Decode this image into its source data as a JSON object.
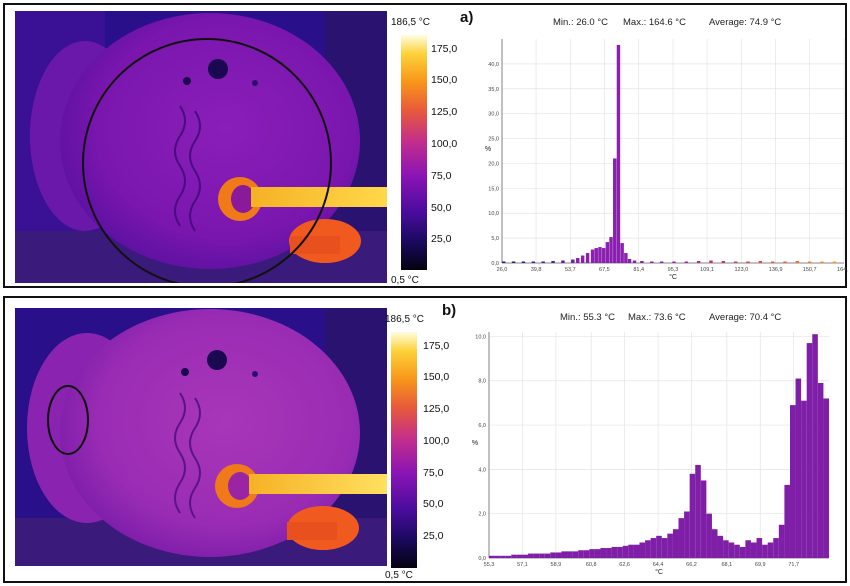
{
  "colorbar": {
    "max_label": "186,5 °C",
    "min_label": "0,5 °C",
    "ticks": [
      "175,0",
      "150,0",
      "125,0",
      "100,0",
      "75,0",
      "50,0",
      "25,0"
    ],
    "tick_values": [
      175,
      150,
      125,
      100,
      75,
      50,
      25
    ],
    "range": [
      0.5,
      186.5
    ]
  },
  "panels": [
    {
      "letter": "a)",
      "stats": {
        "min": "Min.: 26.0 °C",
        "max": "Max.: 164.6 °C",
        "avg": "Average: 74.9 °C"
      },
      "roi": "large-circle"
    },
    {
      "letter": "b)",
      "stats": {
        "min": "Min.: 55.3 °C",
        "max": "Max.: 73.6 °C",
        "avg": "Average: 70.4 °C"
      },
      "roi": "small-ellipse"
    }
  ],
  "chart_data": [
    {
      "type": "bar",
      "xlabel": "°C",
      "ylabel": "%",
      "xlim": [
        26.0,
        164.6
      ],
      "ylim": [
        0,
        45
      ],
      "x_ticks": [
        "26,0",
        "39,8",
        "53,7",
        "67,5",
        "81,4",
        "95,3",
        "109,1",
        "123,0",
        "136,9",
        "150,7",
        "164,6"
      ],
      "x_tick_values": [
        26.0,
        39.8,
        53.7,
        67.5,
        81.4,
        95.3,
        109.1,
        123.0,
        136.9,
        150.7,
        164.6
      ],
      "y_ticks": [
        "0,0",
        "5,0",
        "10,0",
        "15,0",
        "20,0",
        "25,0",
        "30,0",
        "35,0",
        "40,0"
      ],
      "y_tick_values": [
        0,
        5,
        10,
        15,
        20,
        25,
        30,
        35,
        40
      ],
      "bin_width": 1.39,
      "bins_x": [
        26.0,
        30.0,
        34.0,
        38.0,
        42.0,
        46.0,
        50.0,
        54.0,
        56.0,
        58.0,
        60.0,
        62.0,
        63.5,
        65.0,
        66.5,
        68.0,
        69.5,
        71.0,
        72.5,
        74.0,
        75.5,
        77.0,
        79.0,
        82.0,
        86.0,
        90.0,
        95.0,
        100.0,
        105.0,
        110.0,
        115.0,
        120.0,
        125.0,
        130.0,
        135.0,
        140.0,
        145.0,
        150.0,
        155.0,
        160.0
      ],
      "bins_y": [
        0.3,
        0.3,
        0.3,
        0.3,
        0.3,
        0.4,
        0.5,
        0.7,
        1.0,
        1.5,
        2.0,
        2.7,
        3.0,
        3.2,
        3.0,
        4.2,
        5.2,
        21.0,
        43.8,
        4.0,
        2.0,
        0.8,
        0.5,
        0.4,
        0.3,
        0.3,
        0.3,
        0.3,
        0.4,
        0.5,
        0.4,
        0.3,
        0.3,
        0.4,
        0.3,
        0.3,
        0.4,
        0.3,
        0.3,
        0.3
      ]
    },
    {
      "type": "bar",
      "xlabel": "°C",
      "ylabel": "%",
      "xlim": [
        55.3,
        73.6
      ],
      "ylim": [
        0,
        10.2
      ],
      "x_ticks": [
        "55,3",
        "57,1",
        "58,9",
        "60,8",
        "62,6",
        "64,4",
        "66,2",
        "68,1",
        "69,9",
        "71,7"
      ],
      "x_tick_values": [
        55.3,
        57.1,
        58.9,
        60.8,
        62.6,
        64.4,
        66.2,
        68.1,
        69.9,
        71.7
      ],
      "y_ticks": [
        "0,0",
        "2,0",
        "4,0",
        "6,0",
        "8,0",
        "10,0"
      ],
      "y_tick_values": [
        0,
        2,
        4,
        6,
        8,
        10
      ],
      "bin_width": 0.3,
      "bins_x": [
        55.3,
        55.6,
        55.9,
        56.2,
        56.5,
        56.8,
        57.1,
        57.4,
        57.7,
        58.0,
        58.3,
        58.6,
        58.9,
        59.2,
        59.5,
        59.8,
        60.1,
        60.4,
        60.7,
        61.0,
        61.3,
        61.6,
        61.9,
        62.2,
        62.5,
        62.8,
        63.1,
        63.4,
        63.7,
        64.0,
        64.3,
        64.6,
        64.9,
        65.2,
        65.5,
        65.8,
        66.1,
        66.4,
        66.7,
        67.0,
        67.3,
        67.6,
        67.9,
        68.2,
        68.5,
        68.8,
        69.1,
        69.4,
        69.7,
        70.0,
        70.3,
        70.6,
        70.9,
        71.2,
        71.5,
        71.8,
        72.1,
        72.4,
        72.7,
        73.0,
        73.3
      ],
      "bins_y": [
        0.1,
        0.1,
        0.1,
        0.1,
        0.15,
        0.15,
        0.15,
        0.2,
        0.2,
        0.2,
        0.2,
        0.25,
        0.25,
        0.3,
        0.3,
        0.3,
        0.35,
        0.35,
        0.4,
        0.4,
        0.45,
        0.45,
        0.5,
        0.5,
        0.55,
        0.6,
        0.6,
        0.7,
        0.8,
        0.9,
        1.0,
        0.9,
        1.1,
        1.3,
        1.8,
        2.1,
        3.8,
        4.2,
        3.5,
        2.0,
        1.3,
        1.0,
        0.8,
        0.7,
        0.6,
        0.5,
        0.8,
        0.7,
        0.9,
        0.6,
        0.7,
        0.9,
        1.5,
        3.3,
        6.9,
        8.1,
        7.1,
        9.7,
        10.1,
        7.9,
        7.2
      ]
    }
  ]
}
